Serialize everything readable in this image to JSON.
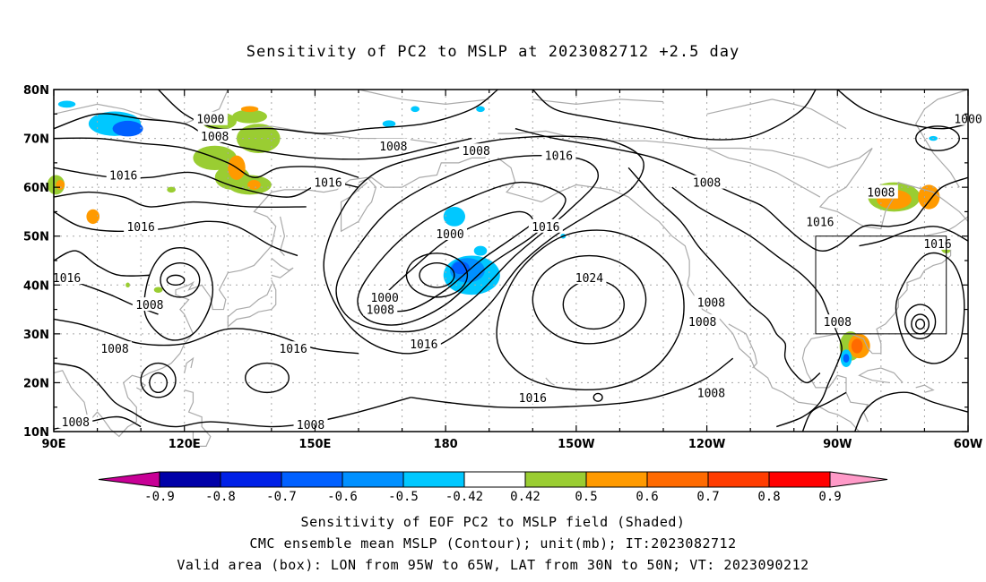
{
  "title": "Sensitivity of PC2 to MSLP at 2023082712 +2.5 day",
  "lat_labels": [
    "80N",
    "70N",
    "60N",
    "50N",
    "40N",
    "30N",
    "20N",
    "10N"
  ],
  "lon_labels": [
    "90E",
    "120E",
    "150E",
    "180",
    "150W",
    "120W",
    "90W",
    "60W"
  ],
  "contour_labels": [
    {
      "text": "1000",
      "lon": 126,
      "lat": 74
    },
    {
      "text": "1008",
      "lon": 127,
      "lat": 70.5
    },
    {
      "text": "1008",
      "lon": 168,
      "lat": 68.5
    },
    {
      "text": "1008",
      "lon": 187,
      "lat": 67.5
    },
    {
      "text": "1016",
      "lon": 206,
      "lat": 66.5
    },
    {
      "text": "1000",
      "lon": 300,
      "lat": 74
    },
    {
      "text": "1016",
      "lon": 106,
      "lat": 62.5
    },
    {
      "text": "1016",
      "lon": 153,
      "lat": 61
    },
    {
      "text": "1008",
      "lon": 240,
      "lat": 61
    },
    {
      "text": "1008",
      "lon": 280,
      "lat": 59
    },
    {
      "text": "1016",
      "lon": 110,
      "lat": 52
    },
    {
      "text": "1000",
      "lon": 181,
      "lat": 50.5
    },
    {
      "text": "1016",
      "lon": 203,
      "lat": 52
    },
    {
      "text": "1016",
      "lon": 266,
      "lat": 53
    },
    {
      "text": "1016",
      "lon": 293,
      "lat": 48.5
    },
    {
      "text": "1016",
      "lon": 93,
      "lat": 41.5
    },
    {
      "text": "1024",
      "lon": 213,
      "lat": 41.5
    },
    {
      "text": "1000",
      "lon": 166,
      "lat": 37.5
    },
    {
      "text": "1008",
      "lon": 165,
      "lat": 35
    },
    {
      "text": "1008",
      "lon": 112,
      "lat": 36
    },
    {
      "text": "1008",
      "lon": 241,
      "lat": 36.5
    },
    {
      "text": "1008",
      "lon": 239,
      "lat": 32.5
    },
    {
      "text": "1008",
      "lon": 270,
      "lat": 32.5
    },
    {
      "text": "1016",
      "lon": 175,
      "lat": 28
    },
    {
      "text": "1016",
      "lon": 145,
      "lat": 27
    },
    {
      "text": "1008",
      "lon": 104,
      "lat": 27
    },
    {
      "text": "1016",
      "lon": 200,
      "lat": 17
    },
    {
      "text": "1008",
      "lon": 241,
      "lat": 18
    },
    {
      "text": "1008",
      "lon": 95,
      "lat": 12
    },
    {
      "text": "1008",
      "lon": 149,
      "lat": 11.5
    }
  ],
  "colorbar": {
    "labels": [
      "-0.9",
      "-0.8",
      "-0.7",
      "-0.6",
      "-0.5",
      "-0.42",
      "0.42",
      "0.5",
      "0.6",
      "0.7",
      "0.8",
      "0.9"
    ],
    "colors": [
      "#0000a8",
      "#0020e6",
      "#0060ff",
      "#0090ff",
      "#00c8ff",
      "#ffffff",
      "#9acd32",
      "#ff9a00",
      "#ff6a00",
      "#ff3c00",
      "#ff0000"
    ],
    "low_color": "#c80096",
    "high_color": "#ff9ac8"
  },
  "caption": {
    "line1": "Sensitivity of EOF PC2 to MSLP field (Shaded)",
    "line2": "CMC ensemble mean MSLP (Contour); unit(mb); IT:2023082712",
    "line3": "Valid area (box): LON from 95W to 65W, LAT from 30N to 50N; VT: 2023090212"
  },
  "valid_box": {
    "lon_min": 265,
    "lon_max": 295,
    "lat_min": 30,
    "lat_max": 50
  },
  "shaded_blobs": [
    {
      "lon": 104,
      "lat": 73,
      "rx": 6,
      "ry": 2.5,
      "c": "#00c8ff"
    },
    {
      "lon": 107,
      "lat": 72,
      "rx": 3.5,
      "ry": 1.6,
      "c": "#0060ff"
    },
    {
      "lon": 93,
      "lat": 77,
      "rx": 2,
      "ry": 0.7,
      "c": "#00c8ff"
    },
    {
      "lon": 128,
      "lat": 73.5,
      "rx": 4,
      "ry": 1.8,
      "c": "#9acd32"
    },
    {
      "lon": 135,
      "lat": 74.5,
      "rx": 4,
      "ry": 1.4,
      "c": "#9acd32"
    },
    {
      "lon": 137,
      "lat": 70,
      "rx": 5,
      "ry": 3,
      "c": "#9acd32"
    },
    {
      "lon": 127,
      "lat": 66,
      "rx": 5,
      "ry": 2.5,
      "c": "#9acd32"
    },
    {
      "lon": 131,
      "lat": 62,
      "rx": 4,
      "ry": 2.5,
      "c": "#9acd32"
    },
    {
      "lon": 135,
      "lat": 60.5,
      "rx": 5,
      "ry": 2,
      "c": "#9acd32"
    },
    {
      "lon": 132,
      "lat": 64,
      "rx": 2,
      "ry": 2.5,
      "c": "#ff9a00"
    },
    {
      "lon": 136,
      "lat": 60.5,
      "rx": 1.5,
      "ry": 1,
      "c": "#ff9a00"
    },
    {
      "lon": 135,
      "lat": 76,
      "rx": 2,
      "ry": 0.6,
      "c": "#ff9a00"
    },
    {
      "lon": 90.5,
      "lat": 60.5,
      "rx": 2,
      "ry": 2,
      "c": "#9acd32"
    },
    {
      "lon": 91.5,
      "lat": 60.5,
      "rx": 1,
      "ry": 1,
      "c": "#ff9a00"
    },
    {
      "lon": 99,
      "lat": 54,
      "rx": 1.5,
      "ry": 1.5,
      "c": "#ff9a00"
    },
    {
      "lon": 117,
      "lat": 59.5,
      "rx": 1,
      "ry": 0.6,
      "c": "#9acd32"
    },
    {
      "lon": 167,
      "lat": 73,
      "rx": 1.5,
      "ry": 0.7,
      "c": "#00c8ff"
    },
    {
      "lon": 173,
      "lat": 76,
      "rx": 1,
      "ry": 0.6,
      "c": "#00c8ff"
    },
    {
      "lon": 188,
      "lat": 76,
      "rx": 1,
      "ry": 0.6,
      "c": "#00c8ff"
    },
    {
      "lon": 182,
      "lat": 54,
      "rx": 2.5,
      "ry": 2,
      "c": "#00c8ff"
    },
    {
      "lon": 186,
      "lat": 42,
      "rx": 6.5,
      "ry": 4,
      "c": "#00c8ff"
    },
    {
      "lon": 185,
      "lat": 43,
      "rx": 4,
      "ry": 2.5,
      "c": "#0090ff"
    },
    {
      "lon": 183.5,
      "lat": 43.5,
      "rx": 2,
      "ry": 1.3,
      "c": "#0060ff"
    },
    {
      "lon": 188,
      "lat": 47,
      "rx": 1.5,
      "ry": 1,
      "c": "#00c8ff"
    },
    {
      "lon": 207,
      "lat": 50,
      "rx": 0.6,
      "ry": 0.5,
      "c": "#00c8ff"
    },
    {
      "lon": 283,
      "lat": 58,
      "rx": 6,
      "ry": 3,
      "c": "#9acd32"
    },
    {
      "lon": 283,
      "lat": 57.5,
      "rx": 4,
      "ry": 2,
      "c": "#ff9a00"
    },
    {
      "lon": 291,
      "lat": 58,
      "rx": 2.5,
      "ry": 2.5,
      "c": "#ff9a00"
    },
    {
      "lon": 295,
      "lat": 47.5,
      "rx": 1.2,
      "ry": 1,
      "c": "#9acd32"
    },
    {
      "lon": 273,
      "lat": 27.5,
      "rx": 2.5,
      "ry": 3,
      "c": "#9acd32"
    },
    {
      "lon": 275,
      "lat": 27.5,
      "rx": 2.5,
      "ry": 2.5,
      "c": "#ff9a00"
    },
    {
      "lon": 274.5,
      "lat": 27.5,
      "rx": 1.3,
      "ry": 1.5,
      "c": "#ff6a00"
    },
    {
      "lon": 272,
      "lat": 25,
      "rx": 1.3,
      "ry": 1.8,
      "c": "#00c8ff"
    },
    {
      "lon": 272,
      "lat": 25,
      "rx": 0.7,
      "ry": 0.9,
      "c": "#0060ff"
    },
    {
      "lon": 292,
      "lat": 70,
      "rx": 1,
      "ry": 0.5,
      "c": "#00c8ff"
    },
    {
      "lon": 114,
      "lat": 39,
      "rx": 1,
      "ry": 0.6,
      "c": "#9acd32"
    },
    {
      "lon": 107,
      "lat": 40,
      "rx": 0.5,
      "ry": 0.5,
      "c": "#9acd32"
    }
  ]
}
